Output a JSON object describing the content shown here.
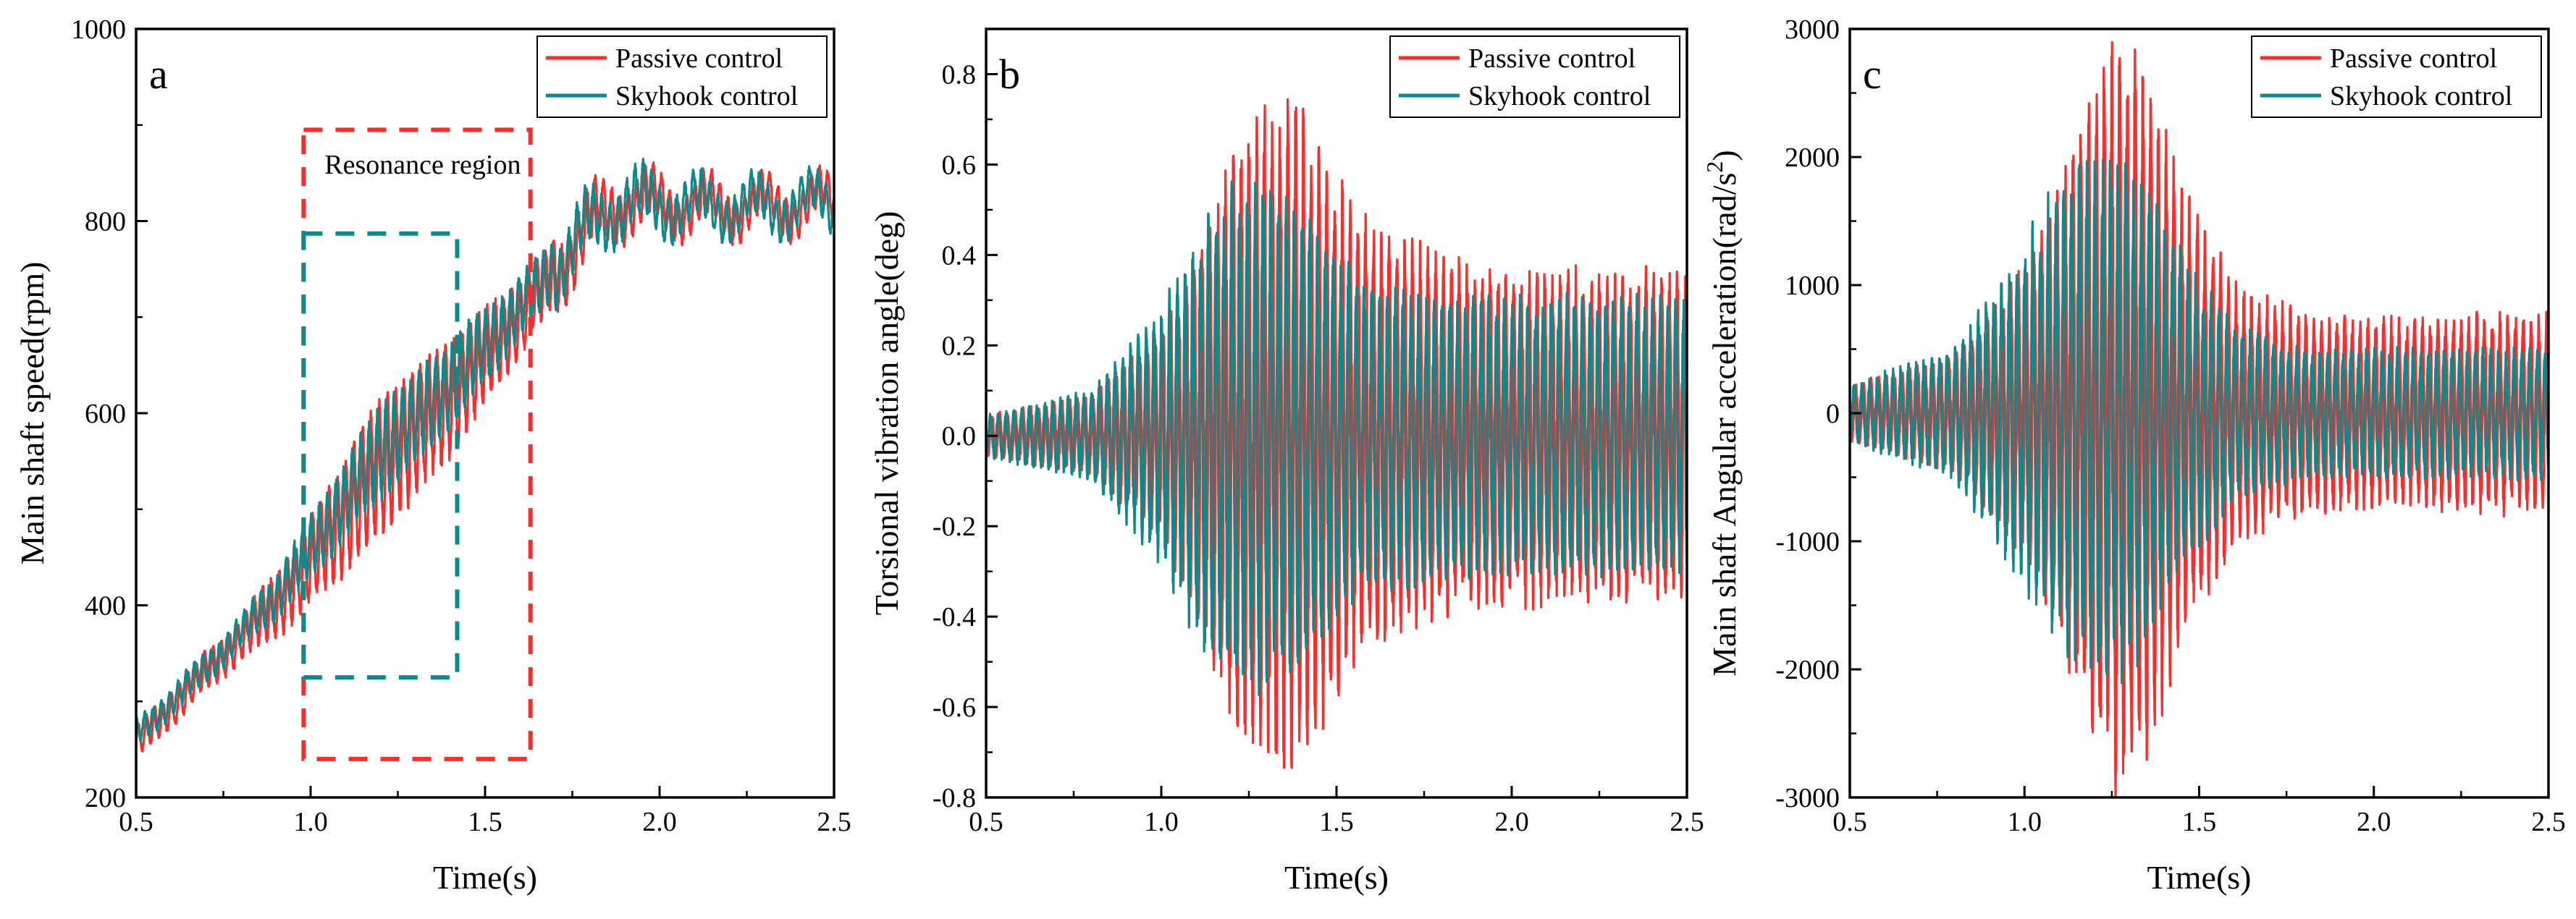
{
  "colors": {
    "passive": "#ff2a2a",
    "skyhook": "#0a8a8a",
    "axis": "#000000"
  },
  "chart_data": [
    {
      "type": "line",
      "panel": "a",
      "xlabel": "Time(s)",
      "ylabel": "Main shaft speed(rpm)",
      "xlim": [
        0.5,
        2.5
      ],
      "ylim": [
        200,
        1000
      ],
      "xticks": [
        0.5,
        1.0,
        1.5,
        2.0,
        2.5
      ],
      "xtick_labels": [
        "0.5",
        "1.0",
        "1.5",
        "2.0",
        "2.5"
      ],
      "yticks": [
        200,
        400,
        600,
        800,
        1000
      ],
      "ytick_labels": [
        "200",
        "400",
        "600",
        "800",
        "1000"
      ],
      "legend": {
        "placement": "top-right",
        "entries": [
          "Passive control",
          "Skyhook control"
        ]
      },
      "annotations": [
        {
          "text": "Resonance region",
          "x": 1.04,
          "y": 860
        }
      ],
      "regions": [
        {
          "name": "passive-resonance-box",
          "series": "Passive control",
          "x0": 0.98,
          "x1": 1.63,
          "y0": 240,
          "y1": 895
        },
        {
          "name": "skyhook-resonance-box",
          "series": "Skyhook control",
          "x0": 0.98,
          "x1": 1.42,
          "y0": 325,
          "y1": 787
        }
      ],
      "series": [
        {
          "name": "Passive control",
          "center": {
            "x": [
              0.5,
              0.7,
              0.9,
              1.0,
              1.2,
              1.4,
              1.6,
              1.8,
              1.9,
              2.1,
              2.3,
              2.5
            ],
            "y": [
              255,
              330,
              400,
              445,
              545,
              615,
              700,
              795,
              820,
              815,
              815,
              820
            ]
          },
          "amplitude": {
            "x": [
              0.5,
              0.8,
              1.0,
              1.2,
              1.4,
              1.6,
              1.9,
              2.2,
              2.5
            ],
            "y": [
              15,
              20,
              40,
              65,
              55,
              35,
              25,
              20,
              20
            ]
          },
          "frequency_hz": 42
        },
        {
          "name": "Skyhook control",
          "center": {
            "x": [
              0.5,
              0.7,
              0.9,
              1.0,
              1.2,
              1.4,
              1.6,
              1.8,
              1.9,
              2.1,
              2.3,
              2.5
            ],
            "y": [
              265,
              335,
              410,
              460,
              560,
              630,
              710,
              795,
              820,
              815,
              815,
              820
            ]
          },
          "amplitude": {
            "x": [
              0.5,
              0.8,
              1.0,
              1.2,
              1.4,
              1.6,
              1.9,
              2.2,
              2.5
            ],
            "y": [
              12,
              15,
              28,
              45,
              40,
              28,
              25,
              20,
              20
            ]
          },
          "frequency_hz": 42
        }
      ]
    },
    {
      "type": "line",
      "panel": "b",
      "xlabel": "Time(s)",
      "ylabel": "Torsional vibration angle(deg)",
      "xlim": [
        0.5,
        2.5
      ],
      "ylim": [
        -0.8,
        0.9
      ],
      "xticks": [
        0.5,
        1.0,
        1.5,
        2.0,
        2.5
      ],
      "xtick_labels": [
        "0.5",
        "1.0",
        "1.5",
        "2.0",
        "2.5"
      ],
      "yticks": [
        -0.8,
        -0.6,
        -0.4,
        -0.2,
        0.0,
        0.2,
        0.4,
        0.6,
        0.8
      ],
      "ytick_labels": [
        "-0.8",
        "-0.6",
        "-0.4",
        "-0.2",
        "0.0",
        "0.2",
        "0.4",
        "0.6",
        "0.8"
      ],
      "legend": {
        "placement": "top-right",
        "entries": [
          "Passive control",
          "Skyhook control"
        ]
      },
      "series": [
        {
          "name": "Passive control",
          "center": {
            "x": [
              0.5,
              2.5
            ],
            "y": [
              0,
              0
            ]
          },
          "amplitude": {
            "x": [
              0.5,
              0.8,
              1.0,
              1.1,
              1.2,
              1.3,
              1.4,
              1.5,
              1.6,
              1.8,
              2.0,
              2.5
            ],
            "y": [
              0.04,
              0.08,
              0.2,
              0.35,
              0.55,
              0.65,
              0.66,
              0.5,
              0.42,
              0.35,
              0.33,
              0.32
            ]
          },
          "frequency_hz": 45
        },
        {
          "name": "Skyhook control",
          "center": {
            "x": [
              0.5,
              2.5
            ],
            "y": [
              0,
              0
            ]
          },
          "amplitude": {
            "x": [
              0.5,
              0.8,
              1.0,
              1.1,
              1.2,
              1.3,
              1.4,
              1.5,
              1.6,
              1.8,
              2.0,
              2.5
            ],
            "y": [
              0.04,
              0.09,
              0.25,
              0.4,
              0.48,
              0.5,
              0.45,
              0.35,
              0.3,
              0.28,
              0.27,
              0.27
            ]
          },
          "frequency_hz": 45
        }
      ]
    },
    {
      "type": "line",
      "panel": "c",
      "xlabel": "Time(s)",
      "ylabel": "Main shaft Angular acceleration(rad/s",
      "ylabel_sup": "2",
      "ylabel_end": ")",
      "xlim": [
        0.5,
        2.5
      ],
      "ylim": [
        -3000,
        3000
      ],
      "xticks": [
        0.5,
        1.0,
        1.5,
        2.0,
        2.5
      ],
      "xtick_labels": [
        "0.5",
        "1.0",
        "1.5",
        "2.0",
        "2.5"
      ],
      "yticks": [
        -3000,
        -2000,
        -1000,
        0,
        1000,
        2000,
        3000
      ],
      "ytick_labels": [
        "-3000",
        "-2000",
        "-1000",
        "0",
        "1000",
        "2000",
        "3000"
      ],
      "legend": {
        "placement": "top-right",
        "entries": [
          "Passive control",
          "Skyhook control"
        ]
      },
      "series": [
        {
          "name": "Passive control",
          "center": {
            "x": [
              0.5,
              2.5
            ],
            "y": [
              0,
              0
            ]
          },
          "amplitude": {
            "x": [
              0.5,
              0.8,
              1.0,
              1.1,
              1.2,
              1.27,
              1.35,
              1.45,
              1.6,
              1.8,
              2.0,
              2.5
            ],
            "y": [
              200,
              400,
              1000,
              1600,
              2300,
              2600,
              2400,
              1600,
              900,
              700,
              650,
              700
            ]
          },
          "frequency_hz": 45
        },
        {
          "name": "Skyhook control",
          "center": {
            "x": [
              0.5,
              2.5
            ],
            "y": [
              0,
              0
            ]
          },
          "amplitude": {
            "x": [
              0.5,
              0.8,
              1.0,
              1.1,
              1.2,
              1.27,
              1.35,
              1.45,
              1.6,
              1.8,
              2.0,
              2.5
            ],
            "y": [
              200,
              450,
              1200,
              1600,
              1800,
              1850,
              1600,
              1100,
              600,
              450,
              450,
              450
            ]
          },
          "frequency_hz": 45
        }
      ]
    }
  ]
}
